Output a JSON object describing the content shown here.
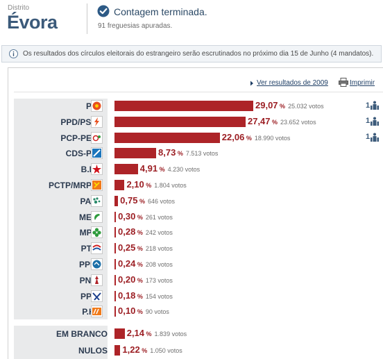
{
  "header": {
    "district_label": "Distrito",
    "district_name": "Évora",
    "status_title": "Contagem terminada.",
    "status_sub": "91 freguesias apuradas.",
    "status_icon": "check-circle-icon"
  },
  "infobar": {
    "text": "Os resultados dos círculos eleitorais do estrangeiro serão escrutinados no próximo dia 15 de Junho (4 mandatos)."
  },
  "toolbar": {
    "results_2009_label": "Ver resultados de 2009",
    "print_label": "Imprimir"
  },
  "colors": {
    "bar": "#ad2428",
    "accent": "#3b5a7a",
    "pct_text": "#9c1f24"
  },
  "parties": [
    {
      "name": "PS",
      "pct": "29,07",
      "votes": "25.032 votos",
      "pct_value": 29.07,
      "mandates": "1",
      "logo": "ps-logo-icon"
    },
    {
      "name": "PPD/PSD",
      "pct": "27,47",
      "votes": "23.652 votos",
      "pct_value": 27.47,
      "mandates": "1",
      "logo": "psd-logo-icon"
    },
    {
      "name": "PCP-PEV",
      "pct": "22,06",
      "votes": "18.990 votos",
      "pct_value": 22.06,
      "mandates": "1",
      "logo": "pcp-pev-logo-icon"
    },
    {
      "name": "CDS-PP",
      "pct": "8,73",
      "votes": "7.513 votos",
      "pct_value": 8.73,
      "mandates": "",
      "logo": "cds-logo-icon"
    },
    {
      "name": "B.E.",
      "pct": "4,91",
      "votes": "4.230 votos",
      "pct_value": 4.91,
      "mandates": "",
      "logo": "be-logo-icon"
    },
    {
      "name": "PCTP/MRPP",
      "pct": "2,10",
      "votes": "1.804 votos",
      "pct_value": 2.1,
      "mandates": "",
      "logo": "pctp-logo-icon"
    },
    {
      "name": "PAN",
      "pct": "0,75",
      "votes": "646 votos",
      "pct_value": 0.75,
      "mandates": "",
      "logo": "pan-logo-icon"
    },
    {
      "name": "MEP",
      "pct": "0,30",
      "votes": "261 votos",
      "pct_value": 0.3,
      "mandates": "",
      "logo": "mep-logo-icon"
    },
    {
      "name": "MPT",
      "pct": "0,28",
      "votes": "242 votos",
      "pct_value": 0.28,
      "mandates": "",
      "logo": "mpt-logo-icon"
    },
    {
      "name": "PTP",
      "pct": "0,25",
      "votes": "218 votos",
      "pct_value": 0.25,
      "mandates": "",
      "logo": "ptp-logo-icon"
    },
    {
      "name": "PPM",
      "pct": "0,24",
      "votes": "208 votos",
      "pct_value": 0.24,
      "mandates": "",
      "logo": "ppm-logo-icon"
    },
    {
      "name": "PNR",
      "pct": "0,20",
      "votes": "173 votos",
      "pct_value": 0.2,
      "mandates": "",
      "logo": "pnr-logo-icon"
    },
    {
      "name": "PPV",
      "pct": "0,18",
      "votes": "154 votos",
      "pct_value": 0.18,
      "mandates": "",
      "logo": "ppv-logo-icon"
    },
    {
      "name": "P.H.",
      "pct": "0,10",
      "votes": "90 votos",
      "pct_value": 0.1,
      "mandates": "",
      "logo": "ph-logo-icon"
    }
  ],
  "others": [
    {
      "name": "EM BRANCO",
      "pct": "2,14",
      "votes": "1.839 votos",
      "pct_value": 2.14
    },
    {
      "name": "NULOS",
      "pct": "1,22",
      "votes": "1.050 votos",
      "pct_value": 1.22
    }
  ],
  "percent_sign": "%"
}
